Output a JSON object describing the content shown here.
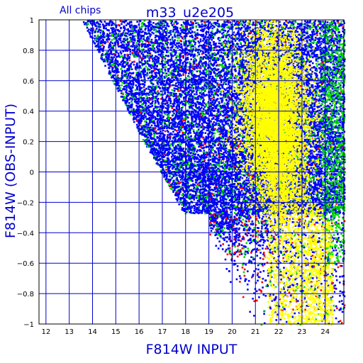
{
  "chart_data": {
    "type": "scatter",
    "title": "m33_u2e205",
    "subtitle": "All chips",
    "xlabel": "F814W INPUT",
    "ylabel": "F814W (OBS-INPUT)",
    "xlim": [
      11.7,
      24.8
    ],
    "ylim": [
      -1,
      1
    ],
    "xticks": [
      12,
      13,
      14,
      15,
      16,
      17,
      18,
      19,
      20,
      21,
      22,
      23,
      24
    ],
    "yticks": [
      -1,
      -0.8,
      -0.6,
      -0.4,
      -0.2,
      0,
      0.2,
      0.4,
      0.6,
      0.8,
      1
    ],
    "xtick_labels": [
      "12",
      "13",
      "14",
      "15",
      "16",
      "17",
      "18",
      "19",
      "20",
      "21",
      "22",
      "23",
      "24"
    ],
    "ytick_labels": [
      "−1",
      "−0.8",
      "−0.6",
      "−0.4",
      "−0.2",
      "0",
      "0.2",
      "0.4",
      "0.6",
      "0.8",
      "1"
    ],
    "grid": true,
    "colors": {
      "grid": "#0000cc",
      "frame": "#000000",
      "blue_points": "#0000ff",
      "green_points": "#00dd00",
      "red_points": "#ff0000",
      "yellow_points": "#ffff00"
    },
    "density_regions": {
      "main_band": {
        "x_range": [
          13.5,
          24.8
        ],
        "y_lower_bound": -0.27,
        "y_lower_flat_from_x": 17.9,
        "left_edge_points": [
          [
            13.5,
            1.0
          ],
          [
            16.2,
            0.2
          ],
          [
            17.9,
            -0.27
          ]
        ]
      },
      "yellow_cloud": {
        "center": [
          21.8,
          0.35
        ],
        "x_range": [
          20.3,
          24.2
        ],
        "y_range": [
          -1.0,
          1.0
        ]
      }
    }
  }
}
